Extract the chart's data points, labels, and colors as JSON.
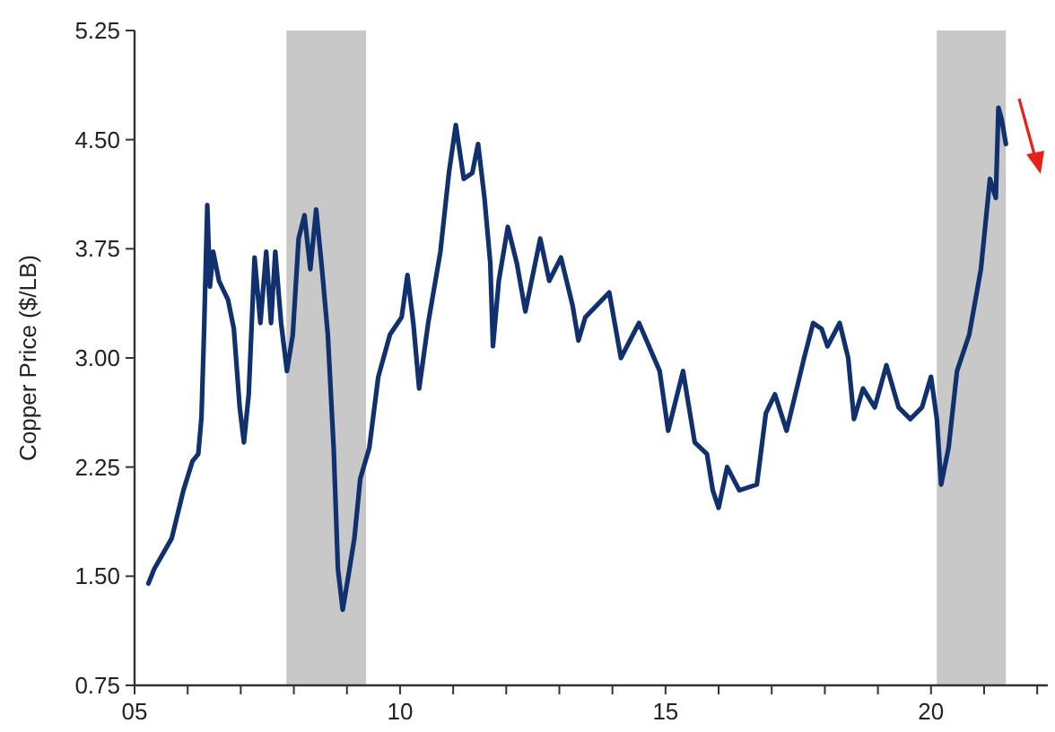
{
  "chart_data": {
    "type": "line",
    "ylabel": "Copper Price ($/LB)",
    "xlim": [
      2005,
      2022.2
    ],
    "ylim": [
      0.75,
      5.25
    ],
    "yticks": [
      0.75,
      {
        "value": 1.5,
        "label": "1.50"
      },
      2.25,
      {
        "value": 3,
        "label": "3.00"
      },
      3.75,
      {
        "value": 4.5,
        "label": "4.50"
      },
      5.25
    ],
    "xticks": [
      {
        "value": 2005,
        "label": "05"
      },
      {
        "value": 2010,
        "label": "10"
      },
      {
        "value": 2015,
        "label": "15"
      },
      {
        "value": 2020,
        "label": "20"
      },
      {
        "value": 2006,
        "label": null
      },
      {
        "value": 2007,
        "label": null
      },
      {
        "value": 2008,
        "label": null
      },
      {
        "value": 2009,
        "label": null
      },
      {
        "value": 2011,
        "label": null
      },
      {
        "value": 2012,
        "label": null
      },
      {
        "value": 2013,
        "label": null
      },
      {
        "value": 2014,
        "label": null
      },
      {
        "value": 2016,
        "label": null
      },
      {
        "value": 2017,
        "label": null
      },
      {
        "value": 2018,
        "label": null
      },
      {
        "value": 2019,
        "label": null
      },
      {
        "value": 2021,
        "label": null
      },
      {
        "value": 2022,
        "label": null
      }
    ],
    "bands": [
      {
        "axis": "x",
        "from": 2007.86,
        "to": 2009.36,
        "color": "#c8c8c8"
      },
      {
        "axis": "x",
        "from": 2020.11,
        "to": 2021.41,
        "color": "#c8c8c8"
      }
    ],
    "grid": false,
    "series": [
      {
        "color": "#10306e",
        "x": [
          2005.26,
          2005.37,
          2005.7,
          2005.92,
          2006.09,
          2006.2,
          2006.26,
          2006.31,
          2006.37,
          2006.42,
          2006.48,
          2006.59,
          2006.76,
          2006.87,
          2006.98,
          2007.06,
          2007.15,
          2007.26,
          2007.37,
          2007.48,
          2007.57,
          2007.65,
          2007.76,
          2007.87,
          2007.98,
          2008.09,
          2008.2,
          2008.31,
          2008.42,
          2008.53,
          2008.64,
          2008.75,
          2008.83,
          2008.92,
          2009.03,
          2009.14,
          2009.25,
          2009.42,
          2009.59,
          2009.81,
          2010.03,
          2010.14,
          2010.25,
          2010.36,
          2010.53,
          2010.76,
          2010.92,
          2011.05,
          2011.2,
          2011.36,
          2011.47,
          2011.59,
          2011.7,
          2011.75,
          2011.86,
          2012.03,
          2012.2,
          2012.36,
          2012.64,
          2012.81,
          2013.03,
          2013.25,
          2013.36,
          2013.49,
          2013.94,
          2014.16,
          2014.5,
          2014.89,
          2015.05,
          2015.33,
          2015.55,
          2015.78,
          2015.89,
          2016.0,
          2016.16,
          2016.39,
          2016.72,
          2016.89,
          2017.06,
          2017.28,
          2017.61,
          2017.78,
          2017.94,
          2018.05,
          2018.28,
          2018.44,
          2018.55,
          2018.72,
          2018.94,
          2019.16,
          2019.39,
          2019.61,
          2019.83,
          2020.0,
          2020.11,
          2020.19,
          2020.33,
          2020.49,
          2020.72,
          2020.94,
          2021.11,
          2021.22,
          2021.27,
          2021.33,
          2021.41
        ],
        "values": [
          1.45,
          1.55,
          1.76,
          2.09,
          2.29,
          2.34,
          2.59,
          3.2,
          4.05,
          3.49,
          3.73,
          3.53,
          3.4,
          3.2,
          2.66,
          2.42,
          2.75,
          3.69,
          3.24,
          3.73,
          3.24,
          3.73,
          3.24,
          2.91,
          3.16,
          3.82,
          3.98,
          3.61,
          4.02,
          3.61,
          3.16,
          2.38,
          1.55,
          1.27,
          1.51,
          1.76,
          2.17,
          2.38,
          2.87,
          3.16,
          3.28,
          3.57,
          3.24,
          2.79,
          3.24,
          3.73,
          4.27,
          4.6,
          4.23,
          4.27,
          4.47,
          4.1,
          3.65,
          3.08,
          3.53,
          3.9,
          3.65,
          3.32,
          3.82,
          3.53,
          3.69,
          3.36,
          3.12,
          3.28,
          3.45,
          3.0,
          3.24,
          2.91,
          2.5,
          2.91,
          2.42,
          2.34,
          2.09,
          1.97,
          2.25,
          2.09,
          2.13,
          2.62,
          2.75,
          2.5,
          3.0,
          3.24,
          3.2,
          3.08,
          3.24,
          3.0,
          2.58,
          2.79,
          2.66,
          2.95,
          2.66,
          2.58,
          2.66,
          2.87,
          2.58,
          2.13,
          2.38,
          2.91,
          3.16,
          3.61,
          4.23,
          4.1,
          4.72,
          4.64,
          4.47
        ]
      }
    ]
  }
}
